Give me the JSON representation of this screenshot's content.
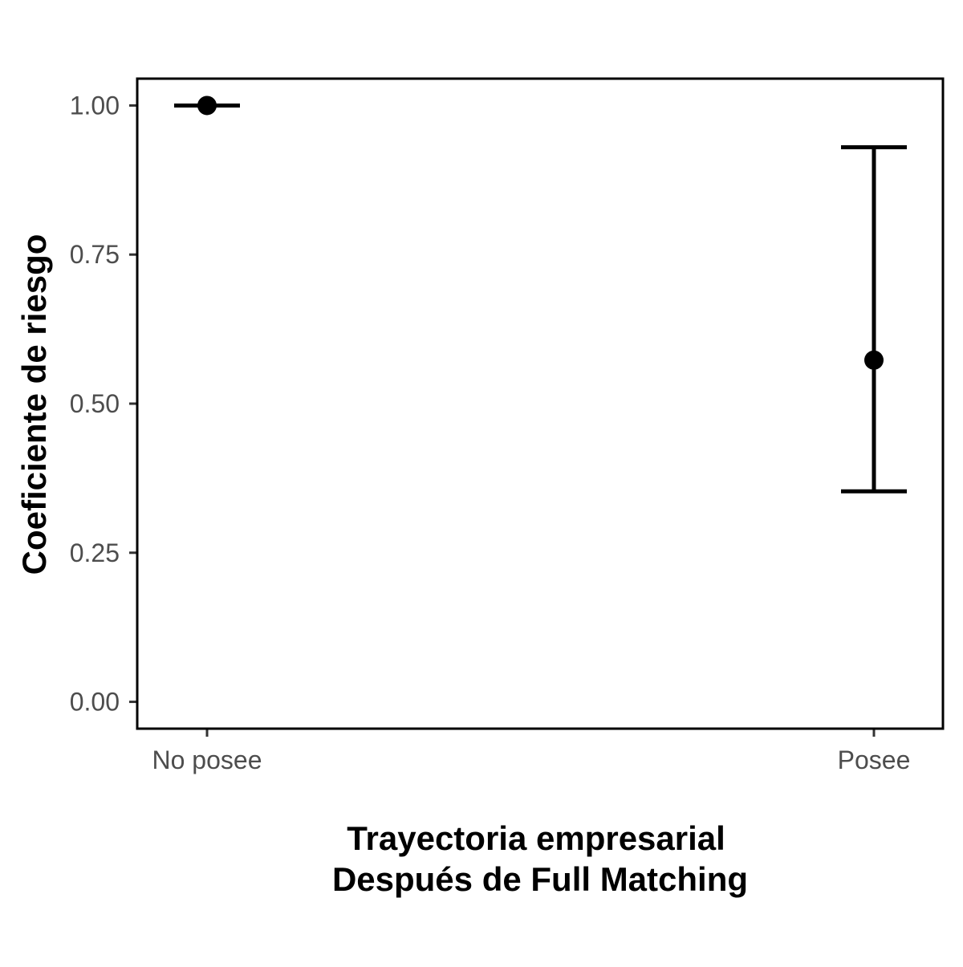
{
  "chart_data": {
    "type": "scatter",
    "title": "",
    "xlabel_lines": [
      "Trayectoria empresarial",
      "Después de Full Matching"
    ],
    "ylabel": "Coeficiente de riesgo",
    "categories": [
      "No posee",
      "Posee"
    ],
    "ylim": [
      -0.045,
      1.045
    ],
    "yticks": [
      0.0,
      0.25,
      0.5,
      0.75,
      1.0
    ],
    "ytick_labels": [
      "0.00",
      "0.25",
      "0.50",
      "0.75",
      "1.00"
    ],
    "grid": false,
    "legend": "none",
    "series": [
      {
        "values": [
          1.0,
          0.573
        ],
        "lower": [
          1.0,
          0.353
        ],
        "upper": [
          1.0,
          0.93
        ]
      }
    ],
    "colors": {
      "point": "#000000",
      "errorbar": "#000000",
      "panel_border": "#000000",
      "tick_text": "#4d4d4d",
      "title_text": "#000000"
    }
  }
}
